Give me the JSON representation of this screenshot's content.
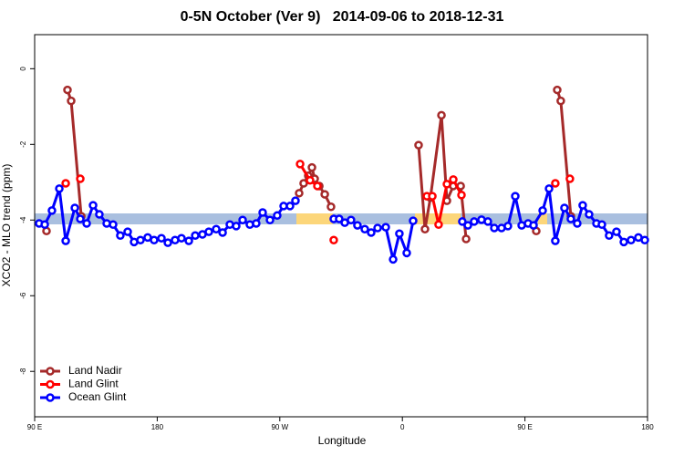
{
  "chart_data": {
    "type": "line",
    "title": "0-5N October (Ver 9)   2014-09-06 to 2018-12-31",
    "x_label": "Longitude",
    "y_label": "XCO2 - MLO trend (ppm)",
    "xlim": [
      90,
      540
    ],
    "ylim": [
      -9.2,
      0.9
    ],
    "xticks": [
      {
        "value": 90,
        "label": "90 E"
      },
      180,
      {
        "value": 270,
        "label": "90 W"
      },
      {
        "value": 360,
        "label": "0"
      },
      {
        "value": 450,
        "label": "90 E"
      },
      {
        "value": 540,
        "label": "180"
      }
    ],
    "yticks": [
      0,
      -2,
      -4,
      -6,
      -8
    ],
    "legend": "bottom-left",
    "series": [
      {
        "name": "Land Nadir",
        "color": "#a52a2a",
        "x": [
          98.7,
          102.0,
          114.1,
          116.8,
          124.2,
          280.0,
          284.2,
          287.5,
          290.9,
          293.6,
          295.6,
          299.0,
          303.0,
          307.6,
          350.0,
          371.9,
          376.6,
          380.6,
          388.7,
          392.7,
          397.4,
          402.8,
          406.8,
          430.0,
          458.3,
          465.0,
          473.7,
          476.3,
          483.7
        ],
        "values": [
          -4.29,
          null,
          -0.56,
          -0.85,
          -3.9,
          null,
          -3.29,
          -3.03,
          -2.83,
          -2.61,
          -2.91,
          -3.1,
          -3.32,
          -3.65,
          null,
          -2.02,
          -4.24,
          -3.41,
          -1.23,
          -3.49,
          -3.1,
          -3.1,
          -4.5,
          null,
          -4.29,
          null,
          -0.56,
          -0.85,
          -3.9
        ]
      },
      {
        "name": "Land Glint",
        "color": "#ff0000",
        "x": [
          112.8,
          118.0,
          123.5,
          200.0,
          284.9,
          292.2,
          297.6,
          303.0,
          309.6,
          350.0,
          378.0,
          382.0,
          386.6,
          392.7,
          397.4,
          403.4,
          440.0,
          472.3,
          478.0,
          483.0
        ],
        "values": [
          -3.03,
          null,
          -2.91,
          null,
          -2.52,
          -2.95,
          -3.1,
          null,
          -4.53,
          null,
          -3.37,
          -3.37,
          -4.12,
          -3.05,
          -2.93,
          -3.34,
          null,
          -3.03,
          null,
          -2.91
        ]
      },
      {
        "name": "Ocean Glint",
        "color": "#0000ff",
        "x": [
          93.3,
          97.4,
          102.7,
          108.1,
          112.8,
          119.5,
          123.5,
          128.2,
          132.9,
          137.5,
          142.9,
          147.6,
          152.9,
          158.3,
          163.0,
          167.7,
          173.0,
          177.7,
          183.1,
          187.8,
          193.1,
          197.8,
          203.2,
          207.9,
          213.2,
          217.9,
          223.3,
          228.0,
          233.3,
          238.0,
          242.7,
          248.0,
          252.7,
          257.4,
          262.8,
          268.1,
          272.8,
          277.5,
          281.5,
          295.0,
          309.6,
          313.6,
          317.7,
          322.3,
          327.0,
          332.4,
          337.1,
          341.8,
          347.8,
          353.2,
          357.8,
          363.2,
          367.9,
          385.0,
          404.0,
          408.1,
          412.7,
          418.1,
          422.8,
          427.5,
          432.8,
          437.5,
          442.9,
          447.6,
          452.3,
          456.3,
          463.0,
          467.7,
          472.3,
          479.0,
          483.7,
          488.4,
          492.4,
          497.1,
          502.5,
          506.5,
          511.8,
          517.2,
          522.6,
          527.9,
          533.3,
          538.0
        ],
        "values": [
          -4.09,
          -4.12,
          -3.75,
          -3.17,
          -4.55,
          -3.68,
          -3.97,
          -4.09,
          -3.61,
          -3.85,
          -4.09,
          -4.12,
          -4.41,
          -4.31,
          -4.58,
          -4.53,
          -4.46,
          -4.53,
          -4.48,
          -4.6,
          -4.53,
          -4.48,
          -4.55,
          -4.41,
          -4.38,
          -4.31,
          -4.24,
          -4.33,
          -4.12,
          -4.16,
          -4.0,
          -4.12,
          -4.09,
          -3.8,
          -4.0,
          -3.88,
          -3.63,
          -3.63,
          -3.49,
          null,
          -3.97,
          -3.97,
          -4.07,
          -4.0,
          -4.14,
          -4.24,
          -4.33,
          -4.21,
          -4.19,
          -5.04,
          -4.36,
          -4.87,
          -4.02,
          null,
          -4.04,
          -4.14,
          -4.04,
          -3.99,
          -4.04,
          -4.21,
          -4.21,
          -4.16,
          -3.37,
          -4.14,
          -4.09,
          -4.14,
          -3.75,
          -3.17,
          -4.55,
          -3.68,
          -3.97,
          -4.09,
          -3.61,
          -3.85,
          -4.09,
          -4.12,
          -4.41,
          -4.31,
          -4.58,
          -4.53,
          -4.46,
          -4.53
        ]
      }
    ]
  }
}
